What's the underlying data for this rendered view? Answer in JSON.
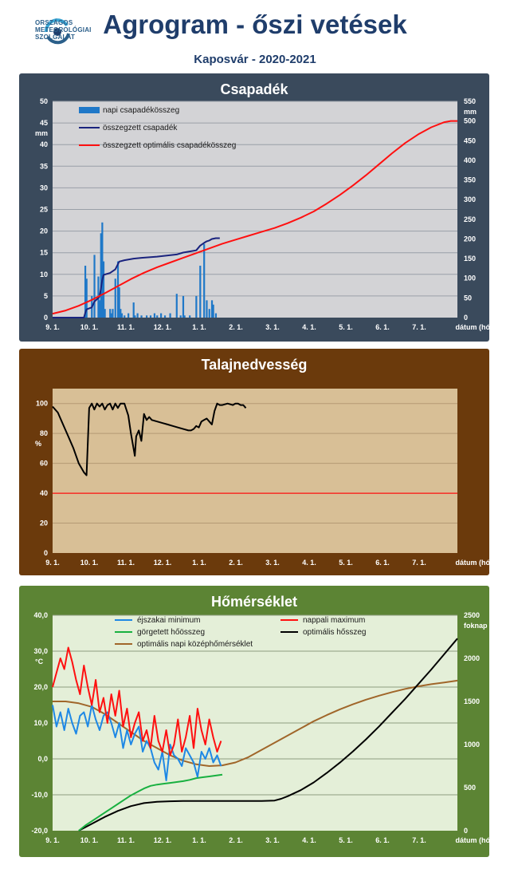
{
  "header": {
    "logo_lines": [
      "ORSZÁGOS",
      "METEOROLÓGIAI",
      "SZOLGÁLAT"
    ],
    "title": "Agrogram - őszi vetések",
    "subtitle": "Kaposvár - 2020-2021"
  },
  "colors": {
    "precip_bar": "#1f78c8",
    "cum_precip": "#1a237e",
    "optimal_red": "#ff1010",
    "soil_line": "#000000",
    "soil_ref": "#ff1010",
    "tmin": "#1e88e5",
    "tmax": "#ff1010",
    "rolling_heat": "#18b040",
    "optimal_heat": "#000000",
    "optimal_daily_mean": "#a0662a"
  },
  "chart_data": [
    {
      "type": "bar",
      "panel": "Csapadék",
      "title": "Csapadék",
      "x_ticks": [
        "9. 1.",
        "10. 1.",
        "11. 1.",
        "12. 1.",
        "1. 1.",
        "2. 1.",
        "3. 1.",
        "4. 1.",
        "5. 1.",
        "6. 1.",
        "7. 1."
      ],
      "x_label": "dátum (hó.nap)",
      "x_range_days": [
        0,
        310
      ],
      "y_left": {
        "unit": "mm",
        "range": [
          0,
          50
        ],
        "ticks": [
          0,
          5,
          10,
          15,
          20,
          25,
          30,
          35,
          40,
          45,
          50
        ]
      },
      "y_right": {
        "unit": "mm",
        "range": [
          0,
          550
        ],
        "ticks": [
          0,
          50,
          100,
          150,
          200,
          250,
          300,
          350,
          400,
          450,
          500,
          550
        ]
      },
      "legend": [
        "napi csapadékösszeg",
        "összegzett csapadék",
        "összegzett optimális csapadékösszeg"
      ],
      "series": [
        {
          "name": "napi csapadékösszeg",
          "kind": "bar",
          "axis": "left",
          "x": [
            25,
            26,
            30,
            32,
            35,
            36,
            37,
            38,
            39,
            40,
            44,
            45,
            46,
            48,
            50,
            51,
            52,
            53,
            55,
            58,
            62,
            63,
            65,
            68,
            72,
            75,
            78,
            80,
            83,
            86,
            90,
            95,
            98,
            100,
            101,
            105,
            110,
            113,
            116,
            118,
            120,
            122,
            123,
            125
          ],
          "y": [
            12,
            9,
            5,
            14.5,
            9.5,
            4,
            19.5,
            22,
            13,
            2,
            2,
            1,
            2,
            9,
            13,
            7,
            2,
            1,
            0.5,
            1,
            3.5,
            0.5,
            1,
            0.5,
            0.5,
            0.5,
            1,
            0.5,
            1,
            0.5,
            1,
            5.5,
            0.5,
            5,
            0.5,
            0.5,
            5,
            12,
            17,
            4,
            2,
            4,
            3,
            1
          ]
        },
        {
          "name": "összegzett csapadék",
          "kind": "line",
          "axis": "right",
          "x": [
            0,
            24,
            25,
            26,
            30,
            32,
            35,
            36,
            37,
            38,
            39,
            44,
            48,
            50,
            51,
            55,
            62,
            68,
            80,
            95,
            100,
            110,
            113,
            116,
            118,
            120,
            122,
            125,
            128
          ],
          "y": [
            0,
            0,
            12,
            21,
            26,
            40.5,
            50,
            54,
            73.5,
            95.5,
            108.5,
            113.5,
            122.5,
            135.5,
            142.5,
            146,
            150,
            152,
            155,
            160.5,
            165.5,
            171,
            183,
            190,
            194,
            196,
            200,
            202,
            202
          ]
        },
        {
          "name": "összegzett optimális csapadékösszeg",
          "kind": "line",
          "axis": "right",
          "x": [
            0,
            10,
            20,
            30,
            40,
            50,
            60,
            70,
            80,
            90,
            100,
            110,
            120,
            130,
            140,
            150,
            160,
            170,
            180,
            190,
            200,
            210,
            220,
            230,
            240,
            250,
            260,
            270,
            280,
            290,
            300,
            305,
            310
          ],
          "y": [
            10,
            18,
            30,
            45,
            62,
            80,
            98,
            114,
            128,
            140,
            152,
            164,
            176,
            188,
            198,
            208,
            218,
            228,
            240,
            254,
            270,
            290,
            312,
            336,
            362,
            390,
            418,
            444,
            466,
            484,
            497,
            500,
            500
          ]
        }
      ]
    },
    {
      "type": "line",
      "panel": "Talajnedvesség",
      "title": "Talajnedvesség",
      "x_ticks": [
        "9. 1.",
        "10. 1.",
        "11. 1.",
        "12. 1.",
        "1. 1.",
        "2. 1.",
        "3. 1.",
        "4. 1.",
        "5. 1.",
        "6. 1.",
        "7. 1."
      ],
      "x_label": "dátum (hó.nap)",
      "x_range_days": [
        0,
        310
      ],
      "y_left": {
        "unit": "%",
        "range": [
          0,
          110
        ],
        "ticks": [
          0,
          20,
          40,
          60,
          80,
          100
        ]
      },
      "reference_y": 40,
      "series": [
        {
          "name": "talajnedvesség",
          "kind": "line",
          "x": [
            0,
            4,
            8,
            12,
            16,
            20,
            24,
            26,
            28,
            30,
            32,
            34,
            36,
            38,
            40,
            42,
            44,
            46,
            48,
            50,
            52,
            55,
            58,
            60,
            62,
            63,
            64,
            66,
            68,
            70,
            72,
            74,
            76,
            80,
            84,
            88,
            92,
            96,
            100,
            104,
            106,
            108,
            110,
            112,
            114,
            116,
            118,
            120,
            122,
            124,
            126,
            128,
            130,
            134,
            138,
            140,
            142,
            144,
            146,
            148
          ],
          "y": [
            98,
            94,
            86,
            78,
            70,
            60,
            54,
            52,
            97,
            100,
            96,
            100,
            98,
            100,
            96,
            99,
            100,
            96,
            100,
            97,
            100,
            100,
            92,
            80,
            70,
            65,
            78,
            82,
            75,
            93,
            89,
            91,
            89,
            88,
            87,
            86,
            85,
            84,
            83,
            82,
            82,
            83,
            85,
            84,
            88,
            89,
            90,
            88,
            86,
            95,
            100,
            99,
            99,
            100,
            99,
            100,
            100,
            99,
            99,
            97
          ]
        }
      ]
    },
    {
      "type": "line",
      "panel": "Hőmérséklet",
      "title": "Hőmérséklet",
      "x_ticks": [
        "9. 1.",
        "10. 1.",
        "11. 1.",
        "12. 1.",
        "1. 1.",
        "2. 1.",
        "3. 1.",
        "4. 1.",
        "5. 1.",
        "6. 1.",
        "7. 1."
      ],
      "x_label": "dátum (hó.nap)",
      "x_range_days": [
        0,
        310
      ],
      "y_left": {
        "unit": "°C",
        "range": [
          -20,
          40
        ],
        "ticks": [
          "-20,0",
          "-10,0",
          "0,0",
          "10,0",
          "20,0",
          "30,0",
          "40,0"
        ]
      },
      "y_right": {
        "unit": "foknap",
        "range": [
          0,
          2500
        ],
        "ticks": [
          0,
          500,
          1000,
          1500,
          2000,
          2500
        ]
      },
      "legend": [
        "éjszakai minimum",
        "nappali maximum",
        "görgetett hőösszeg",
        "optimális hősszeg",
        "optimális napi középhőmérséklet"
      ],
      "series": [
        {
          "name": "éjszakai minimum",
          "kind": "line",
          "axis": "left",
          "x": [
            0,
            3,
            6,
            9,
            12,
            15,
            18,
            21,
            24,
            27,
            30,
            33,
            36,
            39,
            42,
            45,
            48,
            51,
            54,
            57,
            60,
            63,
            66,
            69,
            72,
            75,
            78,
            81,
            84,
            87,
            90,
            93,
            96,
            99,
            102,
            105,
            108,
            111,
            114,
            117,
            120,
            123,
            126,
            129
          ],
          "y": [
            15,
            9,
            13,
            8,
            14,
            10,
            7,
            12,
            13,
            9,
            15,
            11,
            8,
            12,
            13,
            10,
            6,
            10,
            3,
            8,
            4,
            7,
            9,
            2,
            5,
            3,
            -1,
            -3,
            2,
            -6,
            4,
            1,
            0,
            -2,
            3,
            1,
            -1,
            -5,
            2,
            0,
            3,
            -1,
            1,
            -2
          ]
        },
        {
          "name": "nappali maximum",
          "kind": "line",
          "axis": "left",
          "x": [
            0,
            3,
            6,
            9,
            12,
            15,
            18,
            21,
            24,
            27,
            30,
            33,
            36,
            39,
            42,
            45,
            48,
            51,
            54,
            57,
            60,
            63,
            66,
            69,
            72,
            75,
            78,
            81,
            84,
            87,
            90,
            93,
            96,
            99,
            102,
            105,
            108,
            111,
            114,
            117,
            120,
            123,
            126,
            129
          ],
          "y": [
            20,
            24,
            28,
            25,
            31,
            27,
            22,
            18,
            26,
            20,
            15,
            22,
            13,
            17,
            10,
            18,
            12,
            19,
            9,
            14,
            6,
            10,
            13,
            5,
            8,
            3,
            12,
            5,
            2,
            8,
            1,
            4,
            11,
            2,
            6,
            12,
            3,
            14,
            8,
            4,
            11,
            6,
            2,
            5
          ]
        },
        {
          "name": "görgetett hőösszeg",
          "kind": "line",
          "axis": "right",
          "x": [
            20,
            25,
            30,
            35,
            40,
            45,
            50,
            55,
            60,
            65,
            70,
            75,
            80,
            85,
            90,
            95,
            100,
            105,
            110,
            115,
            120,
            125,
            130
          ],
          "y": [
            0,
            60,
            110,
            160,
            210,
            260,
            310,
            360,
            410,
            450,
            490,
            520,
            535,
            545,
            555,
            565,
            575,
            590,
            610,
            620,
            630,
            640,
            650
          ]
        },
        {
          "name": "optimális hősszeg",
          "kind": "line",
          "axis": "right",
          "x": [
            20,
            30,
            40,
            50,
            60,
            70,
            80,
            90,
            100,
            120,
            140,
            160,
            170,
            175,
            180,
            190,
            200,
            210,
            220,
            230,
            240,
            250,
            260,
            270,
            280,
            290,
            300,
            310
          ],
          "y": [
            0,
            80,
            160,
            230,
            285,
            320,
            335,
            342,
            345,
            345,
            345,
            345,
            350,
            370,
            400,
            470,
            560,
            670,
            790,
            920,
            1060,
            1210,
            1370,
            1530,
            1700,
            1870,
            2050,
            2230
          ]
        },
        {
          "name": "optimális napi középhőmérséklet",
          "kind": "line",
          "axis": "left",
          "x": [
            0,
            10,
            20,
            30,
            40,
            50,
            60,
            70,
            80,
            90,
            100,
            110,
            120,
            130,
            140,
            150,
            160,
            170,
            180,
            190,
            200,
            210,
            220,
            230,
            240,
            250,
            260,
            270,
            280,
            290,
            300,
            310
          ],
          "y": [
            16,
            16,
            15.5,
            14.5,
            12.5,
            10,
            7.5,
            5,
            3,
            1,
            -0.5,
            -1.5,
            -2,
            -1.8,
            -1,
            0.5,
            2.5,
            4.5,
            6.5,
            8.5,
            10.5,
            12.2,
            13.8,
            15.2,
            16.5,
            17.6,
            18.6,
            19.5,
            20.2,
            20.8,
            21.3,
            21.8
          ]
        }
      ]
    }
  ]
}
